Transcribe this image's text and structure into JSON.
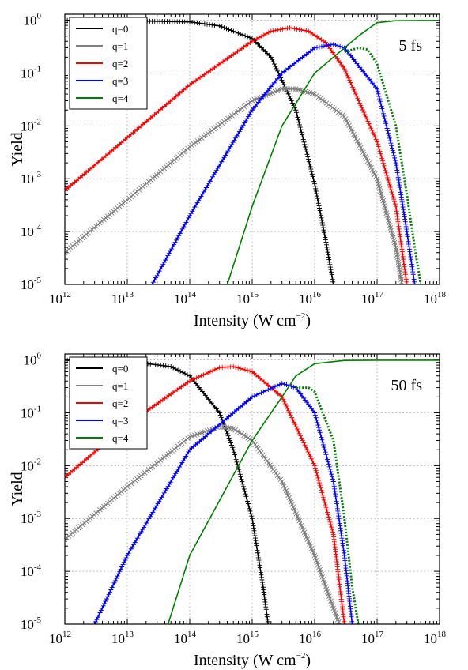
{
  "chart_data": [
    {
      "type": "line",
      "annotation": "5 fs",
      "xlabel": "Intensity (W cm",
      "xlabel_sup": "−2",
      "xlabel_end": ")",
      "ylabel": "Yield",
      "x_scale": "log",
      "y_scale": "log",
      "xlim": [
        1000000000000.0,
        1e+18
      ],
      "ylim": [
        1e-05,
        1.3
      ],
      "grid": true,
      "legend_position": "top-left",
      "x_ticks": [
        {
          "base": "10",
          "exp": "12",
          "value": 1000000000000.0
        },
        {
          "base": "10",
          "exp": "13",
          "value": 10000000000000.0
        },
        {
          "base": "10",
          "exp": "14",
          "value": 100000000000000.0
        },
        {
          "base": "10",
          "exp": "15",
          "value": 1000000000000000.0
        },
        {
          "base": "10",
          "exp": "16",
          "value": 1e+16
        },
        {
          "base": "10",
          "exp": "17",
          "value": 1e+17
        },
        {
          "base": "10",
          "exp": "18",
          "value": 1e+18
        }
      ],
      "y_ticks": [
        {
          "base": "10",
          "exp": "0",
          "value": 1
        },
        {
          "base": "10",
          "exp": "-1",
          "value": 0.1
        },
        {
          "base": "10",
          "exp": "-2",
          "value": 0.01
        },
        {
          "base": "10",
          "exp": "-3",
          "value": 0.001
        },
        {
          "base": "10",
          "exp": "-4",
          "value": 0.0001
        },
        {
          "base": "10",
          "exp": "-5",
          "value": 1e-05
        }
      ],
      "series": [
        {
          "name": "q=0",
          "color": "#000000",
          "line": "solid",
          "marker": "plus",
          "x": [
            1000000000000.0,
            10000000000000.0,
            100000000000000.0,
            300000000000000.0,
            1000000000000000.0,
            2000000000000000.0,
            5000000000000000.0,
            1e+16,
            1.5e+16,
            2e+16
          ],
          "y": [
            0.99,
            0.98,
            0.93,
            0.78,
            0.45,
            0.2,
            0.02,
            0.0008,
            7e-05,
            1e-05
          ]
        },
        {
          "name": "q=1",
          "color": "#808080",
          "line": "solid",
          "marker": "x",
          "x": [
            1000000000000.0,
            10000000000000.0,
            100000000000000.0,
            1000000000000000.0,
            3000000000000000.0,
            5000000000000000.0,
            1e+16,
            3e+16,
            1e+17,
            2e+17,
            2.5e+17
          ],
          "y": [
            4e-05,
            0.0004,
            0.004,
            0.03,
            0.05,
            0.05,
            0.04,
            0.015,
            0.001,
            5e-05,
            1e-05
          ]
        },
        {
          "name": "q=2",
          "color": "#ff0000",
          "line": "solid",
          "marker": "plus",
          "x": [
            1000000000000.0,
            10000000000000.0,
            100000000000000.0,
            1000000000000000.0,
            2000000000000000.0,
            4000000000000000.0,
            8000000000000000.0,
            1.5e+16,
            3e+16,
            1e+17,
            2e+17,
            3e+17
          ],
          "y": [
            0.0006,
            0.006,
            0.06,
            0.4,
            0.62,
            0.72,
            0.62,
            0.38,
            0.12,
            0.005,
            0.0003,
            1e-05
          ]
        },
        {
          "name": "q=3",
          "color": "#0000ff",
          "line": "solid",
          "marker": "plus",
          "x": [
            25000000000000.0,
            100000000000000.0,
            1000000000000000.0,
            3000000000000000.0,
            1e+16,
            2e+16,
            3e+16,
            1e+17,
            2e+17,
            3e+17,
            4e+17
          ],
          "y": [
            1e-05,
            0.0002,
            0.02,
            0.1,
            0.3,
            0.35,
            0.3,
            0.05,
            0.002,
            0.0001,
            1e-05
          ]
        },
        {
          "name": "q=4",
          "color": "#008000",
          "line": "solid",
          "marker": "none",
          "x": [
            400000000000000.0,
            1000000000000000.0,
            3000000000000000.0,
            1e+16,
            3e+16,
            5e+16,
            8e+16,
            1e+17,
            2e+17,
            5e+17,
            1e+18
          ],
          "y": [
            1e-05,
            0.0003,
            0.01,
            0.1,
            0.3,
            0.5,
            0.75,
            0.9,
            0.98,
            0.99,
            0.99
          ]
        },
        {
          "name": "",
          "color": "#008000",
          "line": "dotted",
          "marker": "none",
          "x": [
            3e+16,
            5e+16,
            7e+16,
            1e+17,
            2e+17,
            3e+17,
            4e+17,
            5e+17
          ],
          "y": [
            0.25,
            0.3,
            0.28,
            0.15,
            0.01,
            0.0005,
            5e-05,
            1e-05
          ]
        }
      ]
    },
    {
      "type": "line",
      "annotation": "50 fs",
      "xlabel": "Intensity (W cm",
      "xlabel_sup": "−2",
      "xlabel_end": ")",
      "ylabel": "Yield",
      "x_scale": "log",
      "y_scale": "log",
      "xlim": [
        1000000000000.0,
        1e+18
      ],
      "ylim": [
        1e-05,
        1.3
      ],
      "grid": true,
      "legend_position": "top-left",
      "x_ticks": [
        {
          "base": "10",
          "exp": "12",
          "value": 1000000000000.0
        },
        {
          "base": "10",
          "exp": "13",
          "value": 10000000000000.0
        },
        {
          "base": "10",
          "exp": "14",
          "value": 100000000000000.0
        },
        {
          "base": "10",
          "exp": "15",
          "value": 1000000000000000.0
        },
        {
          "base": "10",
          "exp": "16",
          "value": 1e+16
        },
        {
          "base": "10",
          "exp": "17",
          "value": 1e+17
        },
        {
          "base": "10",
          "exp": "18",
          "value": 1e+18
        }
      ],
      "y_ticks": [
        {
          "base": "10",
          "exp": "0",
          "value": 1
        },
        {
          "base": "10",
          "exp": "-1",
          "value": 0.1
        },
        {
          "base": "10",
          "exp": "-2",
          "value": 0.01
        },
        {
          "base": "10",
          "exp": "-3",
          "value": 0.001
        },
        {
          "base": "10",
          "exp": "-4",
          "value": 0.0001
        },
        {
          "base": "10",
          "exp": "-5",
          "value": 1e-05
        }
      ],
      "series": [
        {
          "name": "q=0",
          "color": "#000000",
          "line": "solid",
          "marker": "plus",
          "x": [
            1000000000000.0,
            10000000000000.0,
            50000000000000.0,
            100000000000000.0,
            300000000000000.0,
            500000000000000.0,
            1000000000000000.0,
            1500000000000000.0,
            1800000000000000.0
          ],
          "y": [
            0.99,
            0.95,
            0.75,
            0.5,
            0.1,
            0.02,
            0.001,
            5e-05,
            1e-05
          ]
        },
        {
          "name": "q=1",
          "color": "#808080",
          "line": "solid",
          "marker": "x",
          "x": [
            1000000000000.0,
            10000000000000.0,
            100000000000000.0,
            300000000000000.0,
            500000000000000.0,
            1000000000000000.0,
            3000000000000000.0,
            1e+16,
            2e+16,
            2.5e+16
          ],
          "y": [
            0.0004,
            0.004,
            0.035,
            0.055,
            0.05,
            0.03,
            0.005,
            0.0002,
            2e-05,
            1e-05
          ]
        },
        {
          "name": "q=2",
          "color": "#ff0000",
          "line": "solid",
          "marker": "plus",
          "x": [
            1000000000000.0,
            10000000000000.0,
            100000000000000.0,
            300000000000000.0,
            500000000000000.0,
            1000000000000000.0,
            3000000000000000.0,
            1e+16,
            2e+16,
            3e+16
          ],
          "y": [
            0.006,
            0.06,
            0.4,
            0.72,
            0.75,
            0.6,
            0.2,
            0.01,
            0.0005,
            1e-05
          ]
        },
        {
          "name": "q=3",
          "color": "#0000ff",
          "line": "solid",
          "marker": "plus",
          "x": [
            3000000000000.0,
            10000000000000.0,
            100000000000000.0,
            1000000000000000.0,
            3000000000000000.0,
            5000000000000000.0,
            1e+16,
            2e+16,
            3e+16,
            4e+16
          ],
          "y": [
            1e-05,
            0.0002,
            0.02,
            0.2,
            0.36,
            0.3,
            0.1,
            0.005,
            0.0002,
            1e-05
          ]
        },
        {
          "name": "q=4",
          "color": "#008000",
          "line": "solid",
          "marker": "none",
          "x": [
            45000000000000.0,
            100000000000000.0,
            1000000000000000.0,
            3000000000000000.0,
            5000000000000000.0,
            1e+16,
            3e+16,
            1e+17,
            1e+18
          ],
          "y": [
            1e-05,
            0.0002,
            0.03,
            0.2,
            0.5,
            0.85,
            0.98,
            0.99,
            0.99
          ]
        },
        {
          "name": "",
          "color": "#008000",
          "line": "dotted",
          "marker": "none",
          "x": [
            5000000000000000.0,
            8000000000000000.0,
            1e+16,
            2e+16,
            3e+16,
            4e+16,
            5e+16
          ],
          "y": [
            0.3,
            0.3,
            0.25,
            0.03,
            0.001,
            5e-05,
            1e-05
          ]
        }
      ]
    }
  ]
}
